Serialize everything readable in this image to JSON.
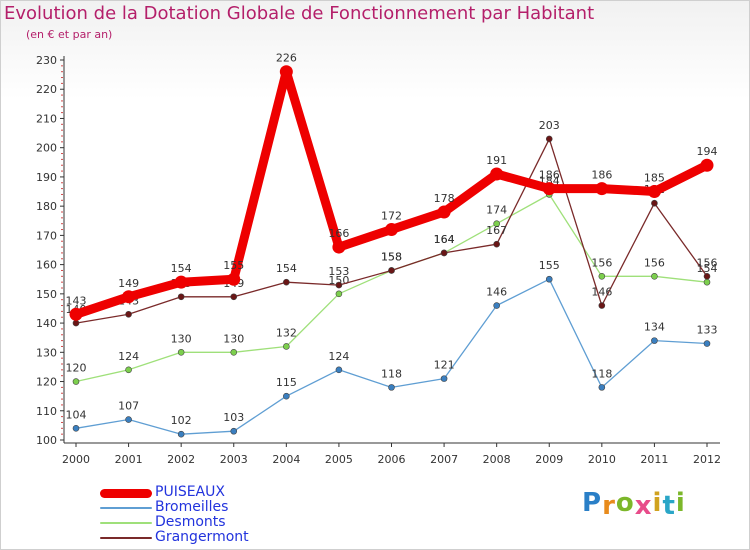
{
  "page": {
    "title": "Evolution de la Dotation Globale de Fonctionnement par Habitant",
    "subtitle": "(en € et par an)"
  },
  "logo": {
    "letters": [
      "P",
      "r",
      "o",
      "x",
      "i",
      "t",
      "i"
    ],
    "colors": [
      "#2a7fc7",
      "#e88b1c",
      "#7cb72a",
      "#e84c8a",
      "#d0a21f",
      "#2aa6c7",
      "#7cb72a"
    ]
  },
  "chart_data": {
    "type": "line",
    "title": "Evolution de la Dotation Globale de Fonctionnement par Habitant",
    "subtitle": "(en € et par an)",
    "x": [
      2000,
      2001,
      2002,
      2003,
      2004,
      2005,
      2006,
      2007,
      2008,
      2009,
      2010,
      2011,
      2012
    ],
    "ylim": [
      100,
      230
    ],
    "yticks": [
      100,
      110,
      120,
      130,
      140,
      150,
      160,
      170,
      180,
      190,
      200,
      210,
      220,
      230
    ],
    "grid": false,
    "legend_position": "bottom-left",
    "series": [
      {
        "name": "Bromeilles",
        "color": "#5f9ed3",
        "marker": "#3a7fc0",
        "values": [
          104,
          107,
          102,
          103,
          115,
          124,
          118,
          121,
          146,
          155,
          118,
          134,
          133
        ]
      },
      {
        "name": "Desmonts",
        "color": "#9fe07a",
        "marker": "#7ccf4d",
        "values": [
          120,
          124,
          130,
          130,
          132,
          150,
          158,
          164,
          174,
          184,
          156,
          156,
          154
        ]
      },
      {
        "name": "Grangermont",
        "color": "#7a2a2a",
        "marker": "#6a1616",
        "values": [
          140,
          143,
          149,
          149,
          154,
          153,
          158,
          164,
          167,
          203,
          146,
          181,
          156
        ]
      },
      {
        "name": "PUISEAUX",
        "color": "#ee0000",
        "marker": "#ee0000",
        "values": [
          143,
          149,
          154,
          155,
          226,
          166,
          172,
          178,
          191,
          186,
          186,
          185,
          194
        ]
      }
    ],
    "legend_order": [
      "PUISEAUX",
      "Bromeilles",
      "Desmonts",
      "Grangermont"
    ]
  }
}
